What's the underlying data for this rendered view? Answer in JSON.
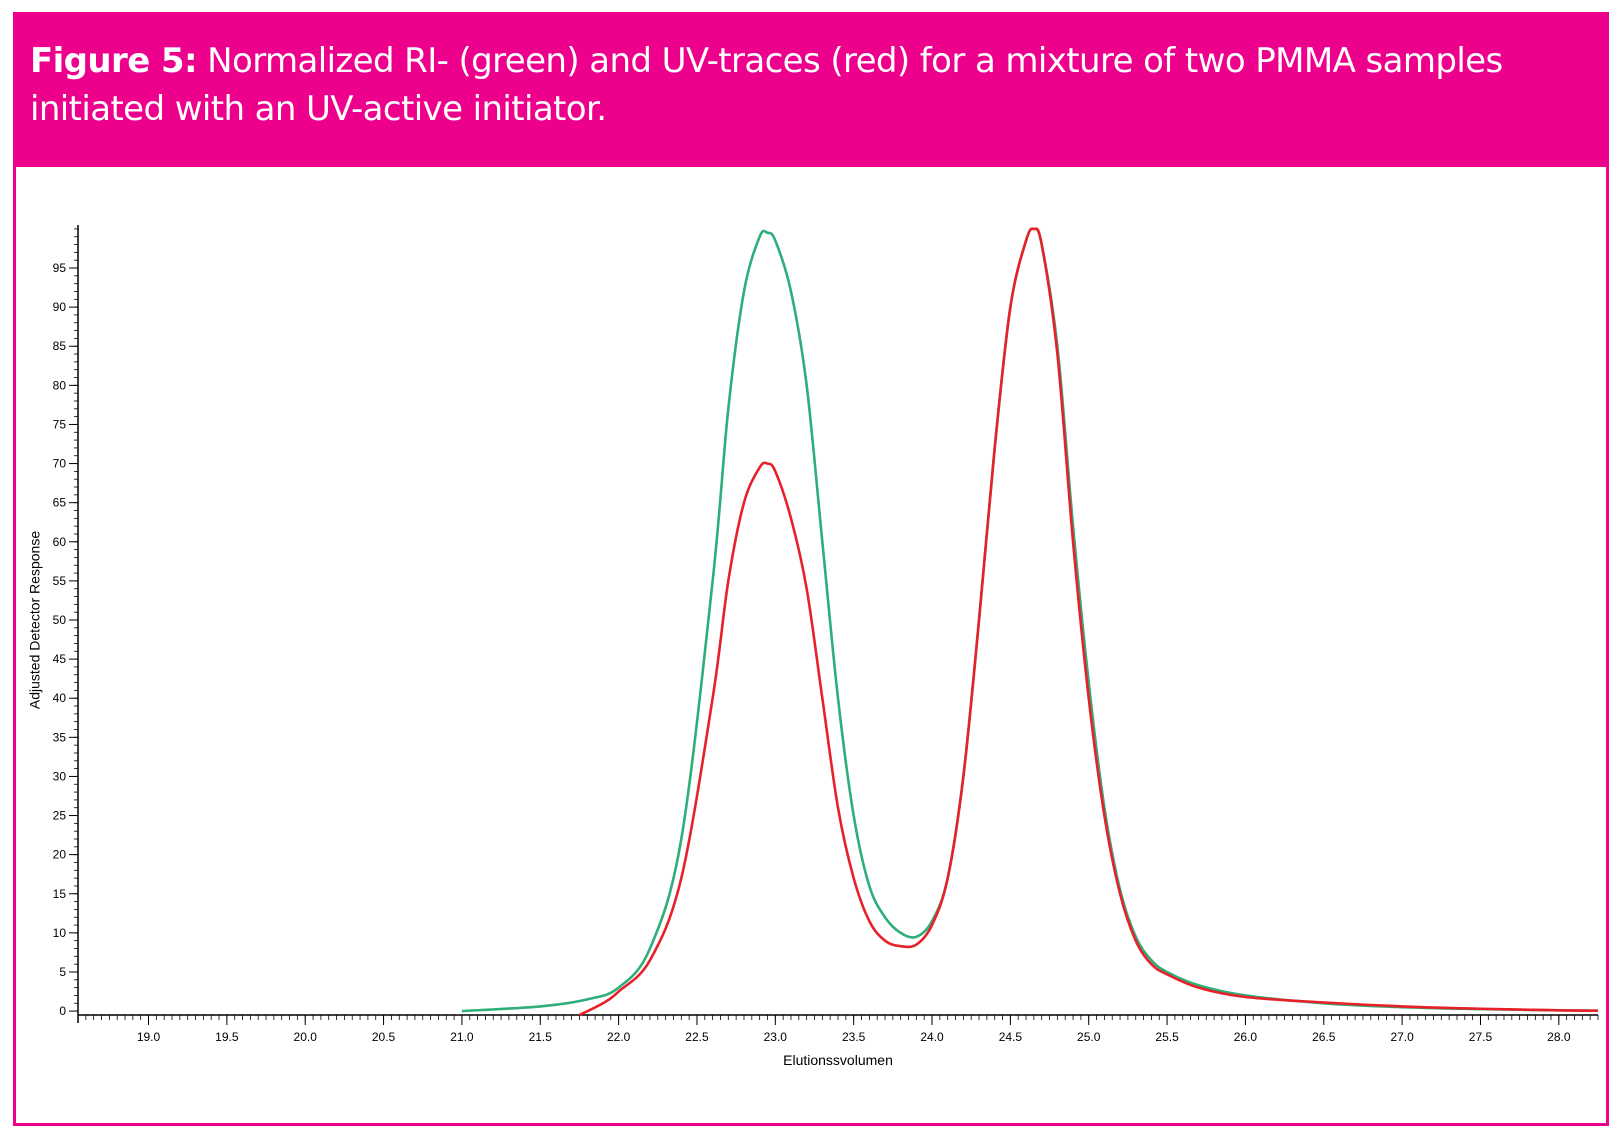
{
  "figure": {
    "label": "Figure 5:",
    "caption": " Normalized RI- (green) and UV-traces (red) for a mixture of two PMMA samples initiated with an UV-active initiator."
  },
  "chart_data": {
    "type": "line",
    "xlabel": "Elutionssvolumen",
    "ylabel": "Adjusted Detector Response",
    "xlim": [
      18.55,
      28.25
    ],
    "ylim": [
      -0.5,
      100.5
    ],
    "x_ticks": [
      19.0,
      19.5,
      20.0,
      20.5,
      21.0,
      21.5,
      22.0,
      22.5,
      23.0,
      23.5,
      24.0,
      24.5,
      25.0,
      25.5,
      26.0,
      26.5,
      27.0,
      27.5,
      28.0
    ],
    "x_tick_labels": [
      "19.0",
      "19.5",
      "20.0",
      "20.5",
      "21.0",
      "21.5",
      "22.0",
      "22.5",
      "23.0",
      "23.5",
      "24.0",
      "24.5",
      "25.0",
      "25.5",
      "26.0",
      "26.5",
      "27.0",
      "27.5",
      "28.0"
    ],
    "y_ticks": [
      0,
      5,
      10,
      15,
      20,
      25,
      30,
      35,
      40,
      45,
      50,
      55,
      60,
      65,
      70,
      75,
      80,
      85,
      90,
      95
    ],
    "y_tick_labels": [
      "0",
      "5",
      "10",
      "15",
      "20",
      "25",
      "30",
      "35",
      "40",
      "45",
      "50",
      "55",
      "60",
      "65",
      "70",
      "75",
      "80",
      "85",
      "90",
      "95"
    ],
    "series": [
      {
        "name": "RI",
        "color": "#2eae78",
        "x": [
          21.0,
          21.5,
          21.8,
          22.0,
          22.2,
          22.4,
          22.6,
          22.7,
          22.8,
          22.9,
          22.95,
          23.0,
          23.1,
          23.2,
          23.3,
          23.4,
          23.5,
          23.6,
          23.7,
          23.8,
          23.9,
          24.0,
          24.1,
          24.2,
          24.3,
          24.4,
          24.5,
          24.6,
          24.65,
          24.7,
          24.8,
          24.9,
          25.0,
          25.1,
          25.2,
          25.3,
          25.4,
          25.5,
          25.7,
          26.0,
          26.5,
          27.0,
          27.5,
          28.0,
          28.25
        ],
        "y": [
          0.0,
          0.6,
          1.5,
          3.0,
          8.0,
          22.0,
          55.0,
          77.0,
          92.0,
          99.0,
          99.5,
          98.5,
          92.0,
          80.0,
          60.0,
          40.0,
          25.0,
          16.0,
          12.0,
          10.0,
          9.5,
          11.5,
          17.0,
          30.0,
          50.0,
          72.0,
          90.0,
          98.5,
          100.0,
          98.0,
          85.0,
          62.0,
          42.0,
          26.0,
          15.5,
          9.5,
          6.5,
          5.0,
          3.3,
          2.0,
          1.0,
          0.5,
          0.25,
          0.1,
          0.05
        ]
      },
      {
        "name": "UV",
        "color": "#e8202a",
        "x": [
          21.75,
          21.9,
          22.0,
          22.2,
          22.4,
          22.6,
          22.7,
          22.8,
          22.9,
          22.95,
          23.0,
          23.1,
          23.2,
          23.3,
          23.4,
          23.5,
          23.6,
          23.7,
          23.8,
          23.9,
          24.0,
          24.1,
          24.2,
          24.3,
          24.4,
          24.5,
          24.6,
          24.65,
          24.7,
          24.8,
          24.9,
          25.0,
          25.1,
          25.2,
          25.3,
          25.4,
          25.5,
          25.7,
          26.0,
          26.5,
          27.0,
          27.5,
          28.0,
          28.25
        ],
        "y": [
          -0.5,
          1.0,
          2.5,
          6.5,
          17.0,
          40.0,
          55.0,
          65.0,
          69.5,
          70.0,
          69.0,
          63.0,
          54.0,
          40.0,
          26.0,
          17.0,
          11.5,
          9.0,
          8.3,
          8.5,
          11.0,
          17.0,
          30.0,
          50.0,
          72.0,
          90.0,
          98.5,
          100.0,
          98.0,
          84.0,
          60.0,
          40.0,
          25.0,
          15.0,
          9.0,
          6.0,
          4.7,
          3.0,
          1.8,
          1.1,
          0.6,
          0.3,
          0.1,
          0.05
        ]
      }
    ]
  }
}
